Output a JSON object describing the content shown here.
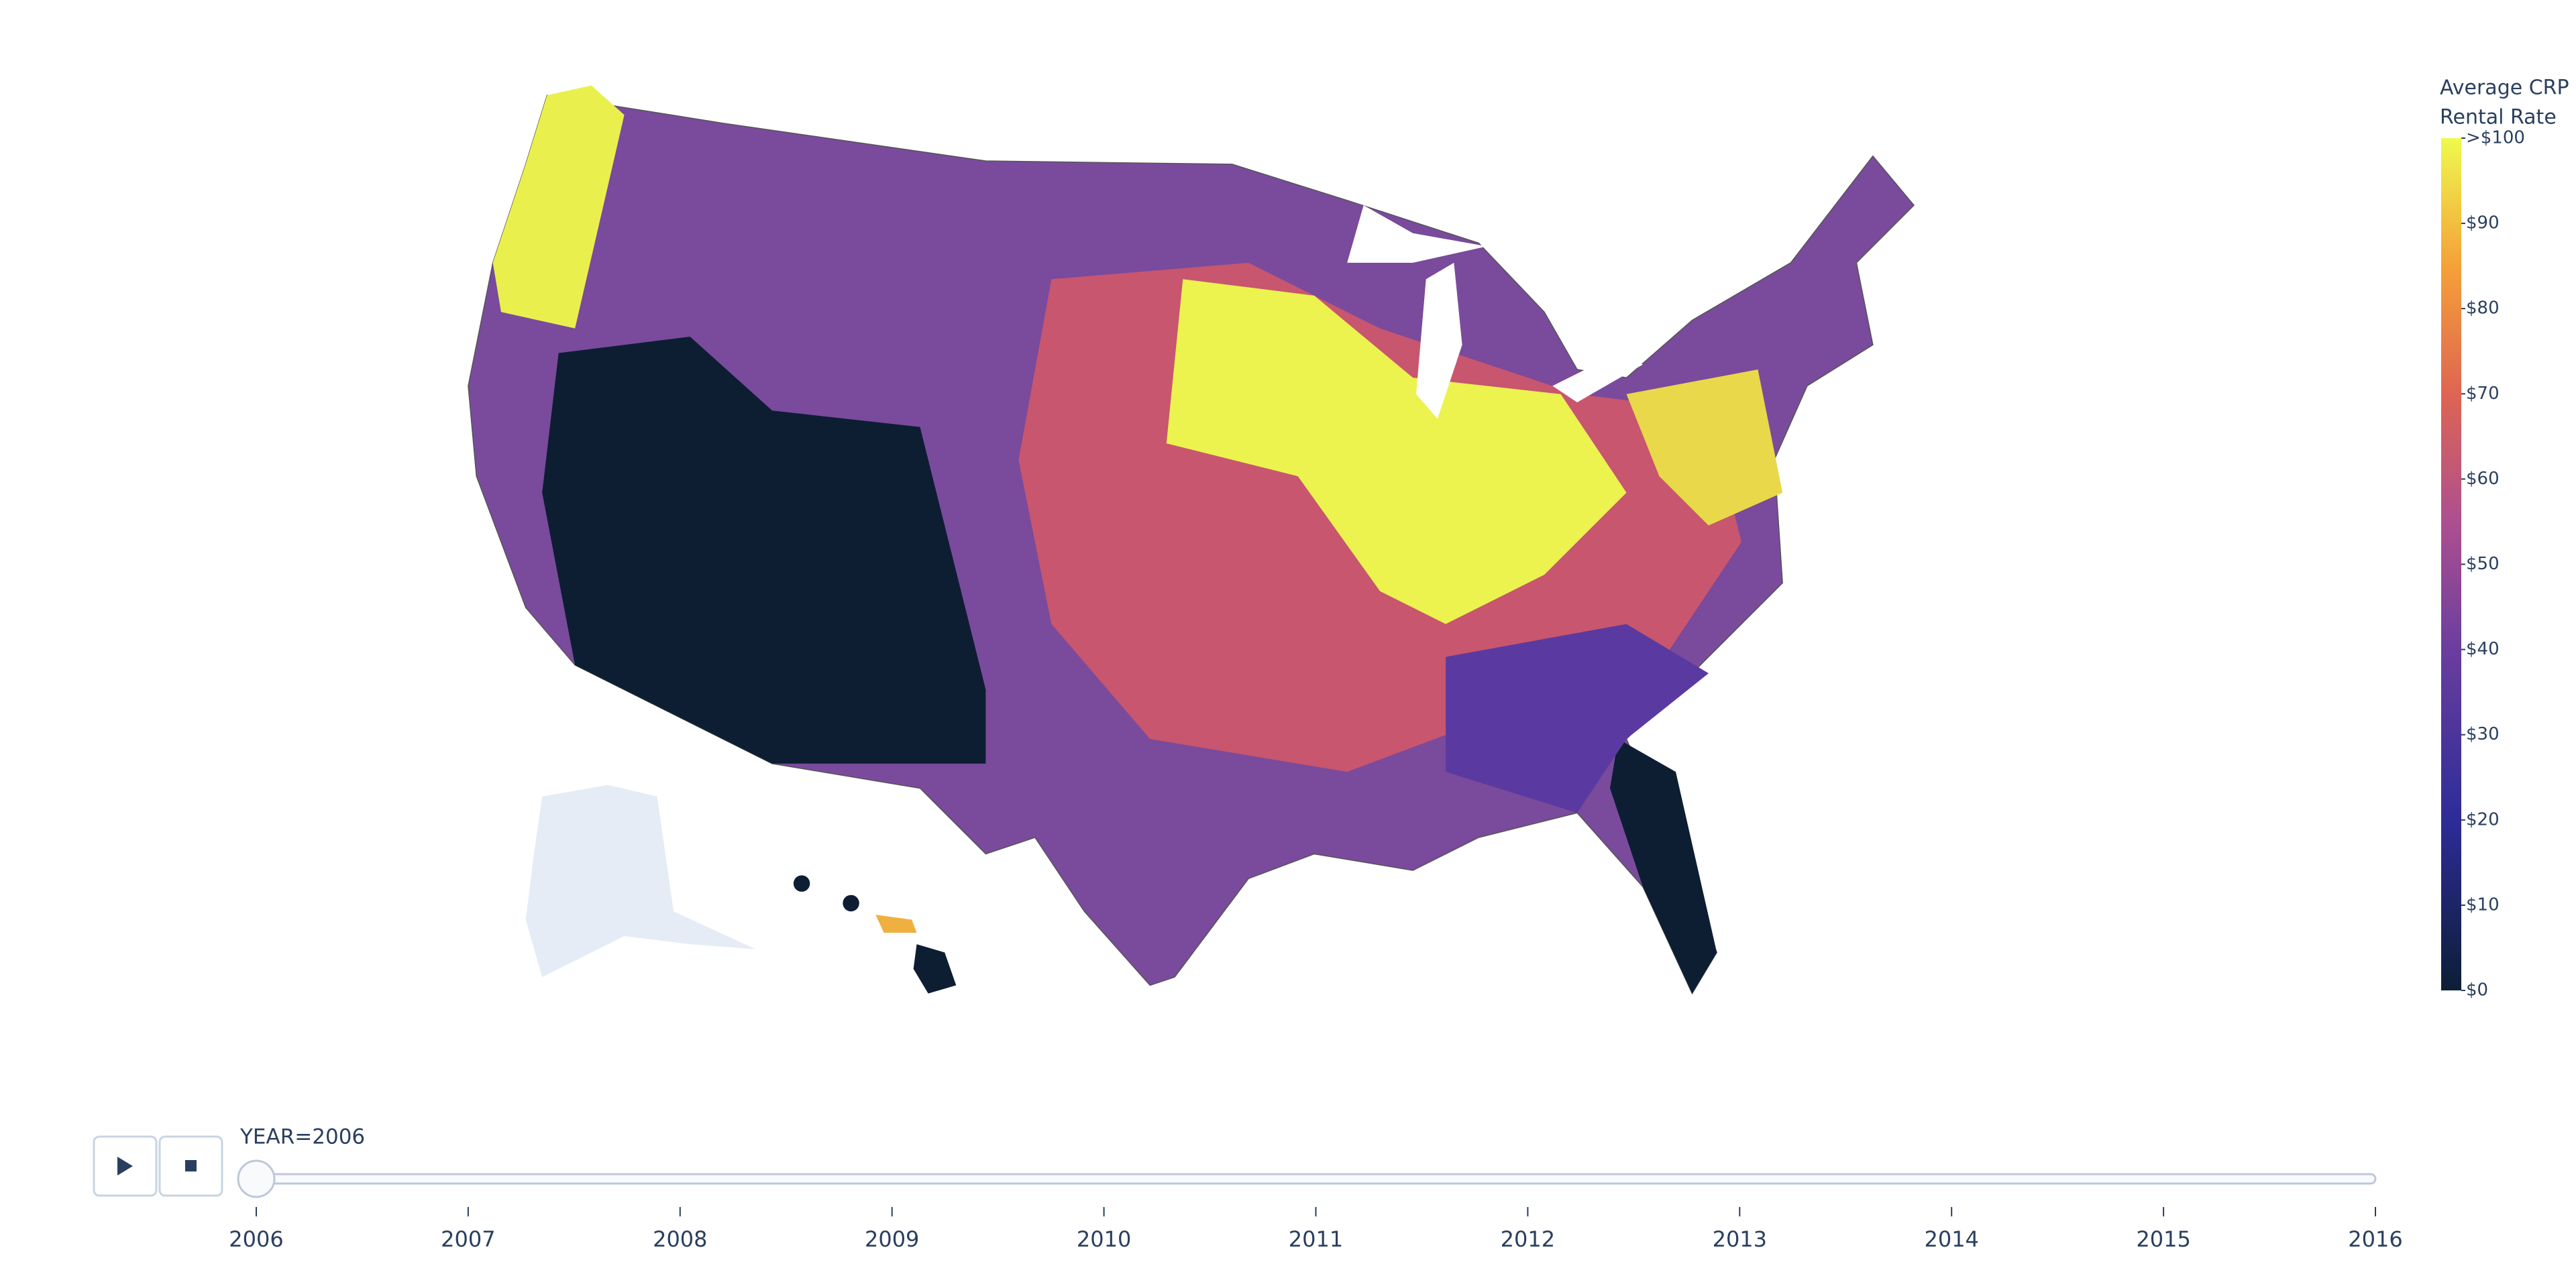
{
  "colorbar": {
    "title": [
      "Average CRP",
      "Rental Rate"
    ],
    "range": [
      0,
      100
    ],
    "ticks": [
      {
        "value": 100,
        "label": ">$100"
      },
      {
        "value": 90,
        "label": "$90"
      },
      {
        "value": 80,
        "label": "$80"
      },
      {
        "value": 70,
        "label": "$70"
      },
      {
        "value": 60,
        "label": "$60"
      },
      {
        "value": 50,
        "label": "$50"
      },
      {
        "value": 40,
        "label": "$40"
      },
      {
        "value": 30,
        "label": "$30"
      },
      {
        "value": 20,
        "label": "$20"
      },
      {
        "value": 10,
        "label": "$10"
      },
      {
        "value": 0,
        "label": "$0"
      }
    ]
  },
  "slider": {
    "label": "YEAR=2006",
    "current": 2006,
    "ticks": [
      2006,
      2007,
      2008,
      2009,
      2010,
      2011,
      2012,
      2013,
      2014,
      2015,
      2016
    ]
  }
}
